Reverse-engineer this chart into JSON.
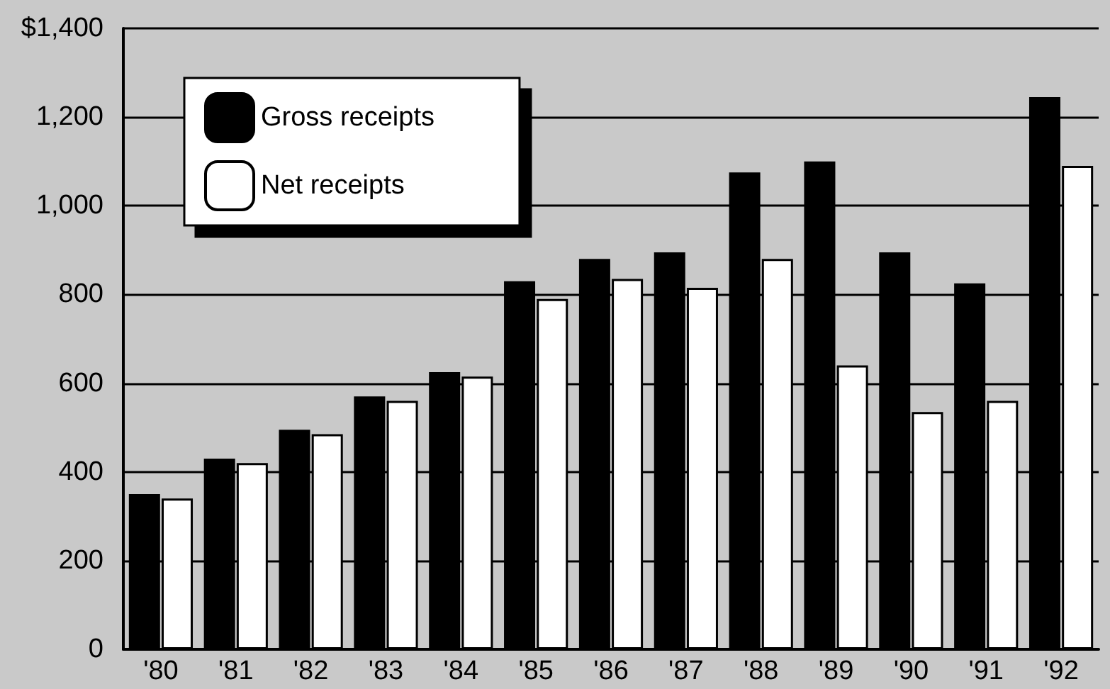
{
  "chart_data": {
    "type": "bar",
    "categories": [
      "'80",
      "'81",
      "'82",
      "'83",
      "'84",
      "'85",
      "'86",
      "'87",
      "'88",
      "'89",
      "'90",
      "'91",
      "'92"
    ],
    "series": [
      {
        "name": "Gross receipts",
        "color": "#000000",
        "values": [
          350,
          430,
          495,
          570,
          625,
          830,
          880,
          895,
          1075,
          1100,
          895,
          825,
          1245
        ]
      },
      {
        "name": "Net receipts",
        "color": "#ffffff",
        "values": [
          340,
          420,
          485,
          560,
          615,
          790,
          835,
          815,
          880,
          640,
          535,
          560,
          1090
        ]
      }
    ],
    "ylim": [
      0,
      1400
    ],
    "yticks": [
      0,
      200,
      400,
      600,
      800,
      {
        "value": 1000,
        "label": "1,000"
      },
      {
        "value": 1200,
        "label": "1,200"
      },
      {
        "value": 1400,
        "label": "$1,400"
      }
    ],
    "grid": "y",
    "legend": "top left"
  }
}
